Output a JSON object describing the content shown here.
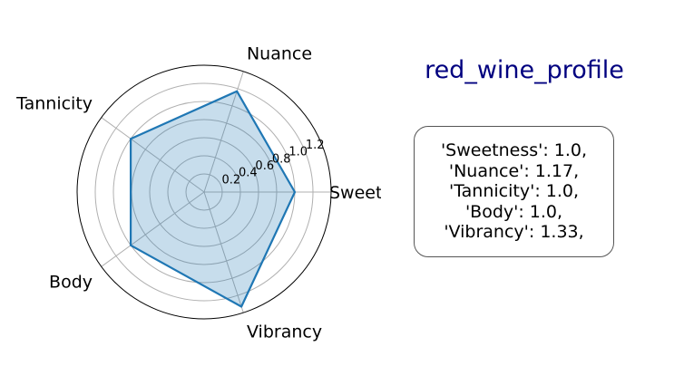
{
  "chart_data": {
    "type": "radar",
    "title": "red_wine_profile",
    "categories": [
      "Sweetness",
      "Nuance",
      "Tannicity",
      "Body",
      "Vibrancy"
    ],
    "series": [
      {
        "values": [
          1.0,
          1.17,
          1.0,
          1.0,
          1.33
        ]
      }
    ],
    "rlim": [
      0,
      1.4
    ],
    "rticks": [
      "0.2",
      "0.4",
      "0.6",
      "0.8",
      "1.0",
      "1.2"
    ],
    "grid": true,
    "colors": {
      "line": "#1f77b4",
      "fill": "#1f77b4",
      "grid": "#b0b0b0"
    }
  },
  "summary_box": {
    "lines": [
      "'Sweetness': 1.0,",
      "'Nuance': 1.17,",
      "'Tannicity': 1.0,",
      "'Body': 1.0,",
      "'Vibrancy': 1.33,"
    ]
  }
}
